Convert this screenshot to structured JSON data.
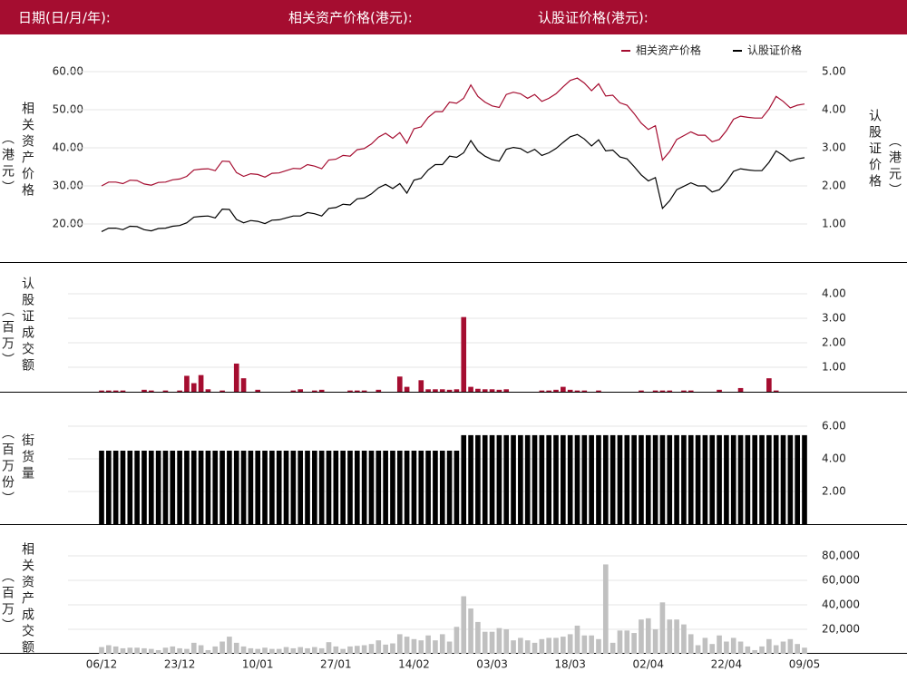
{
  "header": {
    "labels": [
      "日期(日/月/年):",
      "相关资产价格(港元):",
      "认股证价格(港元):"
    ]
  },
  "chart_data": [
    {
      "type": "line",
      "legend_position": "top-right",
      "grid": true,
      "y_label": "相关资产价格",
      "y_unit": "（港元）",
      "y2_label": "认股证价格",
      "y2_unit": "（港元）",
      "ylim": [
        15,
        60
      ],
      "yticks": [
        {
          "value": 20,
          "label": "20.00"
        },
        {
          "value": 30,
          "label": "30.00"
        },
        {
          "value": 40,
          "label": "40.00"
        },
        {
          "value": 50,
          "label": "50.00"
        },
        {
          "value": 60,
          "label": "60.00"
        }
      ],
      "y2lim": [
        0.5,
        5
      ],
      "y2ticks": [
        {
          "value": 1,
          "label": "1.00"
        },
        {
          "value": 2,
          "label": "2.00"
        },
        {
          "value": 3,
          "label": "3.00"
        },
        {
          "value": 4,
          "label": "4.00"
        },
        {
          "value": 5,
          "label": "5.00"
        }
      ],
      "series": [
        {
          "name": "相关资产价格",
          "color": "#a50d30",
          "values": [
            30,
            31,
            31,
            30.6,
            31.5,
            31.4,
            30.5,
            30.2,
            30.9,
            31,
            31.6,
            31.8,
            32.5,
            34.2,
            34.4,
            34.5,
            34,
            36.5,
            36.4,
            33.5,
            32.5,
            33.2,
            33,
            32.3,
            33.3,
            33.4,
            34,
            34.6,
            34.5,
            35.6,
            35.2,
            34.5,
            36.8,
            37,
            38,
            37.8,
            39.5,
            39.8,
            41,
            42.8,
            43.8,
            42.5,
            44,
            41.2,
            45,
            45.5,
            48,
            49.5,
            49.5,
            52,
            51.7,
            53,
            56.5,
            53.5,
            52,
            51,
            50.6,
            54,
            54.6,
            54.2,
            53,
            54,
            52.2,
            53,
            54.2,
            56,
            57.7,
            58.3,
            57,
            55,
            56.8,
            53.6,
            53.8,
            51.8,
            51.2,
            49,
            46.5,
            44.8,
            45.8,
            36.8,
            39,
            42.2,
            43.2,
            44.2,
            43.3,
            43.3,
            41.6,
            42.2,
            44.5,
            47.5,
            48.3,
            48,
            47.8,
            47.8,
            50.2,
            53.5,
            52.2,
            50.5,
            51.2,
            51.5
          ]
        },
        {
          "name": "认股证价格",
          "color": "#000000",
          "axis": "y2",
          "values": [
            0.8,
            0.89,
            0.89,
            0.85,
            0.94,
            0.93,
            0.85,
            0.82,
            0.88,
            0.89,
            0.94,
            0.96,
            1.03,
            1.18,
            1.2,
            1.21,
            1.16,
            1.39,
            1.38,
            1.12,
            1.03,
            1.09,
            1.07,
            1.01,
            1.1,
            1.11,
            1.16,
            1.21,
            1.21,
            1.3,
            1.27,
            1.21,
            1.41,
            1.43,
            1.52,
            1.5,
            1.66,
            1.68,
            1.79,
            1.95,
            2.04,
            1.93,
            2.06,
            1.81,
            2.15,
            2.2,
            2.42,
            2.56,
            2.56,
            2.78,
            2.75,
            2.87,
            3.19,
            2.92,
            2.78,
            2.69,
            2.65,
            2.96,
            3.01,
            2.98,
            2.87,
            2.96,
            2.8,
            2.87,
            2.98,
            3.14,
            3.29,
            3.35,
            3.23,
            3.05,
            3.21,
            2.92,
            2.94,
            2.76,
            2.71,
            2.51,
            2.29,
            2.13,
            2.22,
            1.41,
            1.61,
            1.9,
            1.99,
            2.08,
            2,
            2,
            1.84,
            1.9,
            2.11,
            2.38,
            2.45,
            2.42,
            2.4,
            2.4,
            2.62,
            2.92,
            2.8,
            2.65,
            2.71,
            2.74
          ]
        }
      ]
    },
    {
      "type": "bar",
      "grid": true,
      "color": "#a50d30",
      "y_label": "认股证成交额",
      "y_unit": "（百万）",
      "ylim": [
        0,
        4.5
      ],
      "yticks": [
        {
          "value": 1,
          "label": "1.00"
        },
        {
          "value": 2,
          "label": "2.00"
        },
        {
          "value": 3,
          "label": "3.00"
        },
        {
          "value": 4,
          "label": "4.00"
        }
      ],
      "values": [
        0.05,
        0.05,
        0.05,
        0.05,
        0,
        0,
        0.08,
        0.05,
        0,
        0.05,
        0,
        0.05,
        0.65,
        0.35,
        0.68,
        0.1,
        0,
        0.05,
        0,
        1.15,
        0.55,
        0,
        0.08,
        0,
        0,
        0,
        0,
        0.05,
        0.1,
        0,
        0.05,
        0.08,
        0,
        0,
        0,
        0.05,
        0.05,
        0.05,
        0,
        0.08,
        0,
        0,
        0.62,
        0.2,
        0,
        0.47,
        0.1,
        0.1,
        0.1,
        0.08,
        0.1,
        3.05,
        0.2,
        0.12,
        0.1,
        0.1,
        0.08,
        0.1,
        0,
        0,
        0,
        0,
        0.05,
        0.05,
        0.08,
        0.2,
        0.08,
        0.05,
        0.05,
        0,
        0.05,
        0,
        0,
        0,
        0,
        0,
        0.05,
        0,
        0.05,
        0.05,
        0.05,
        0,
        0.05,
        0.05,
        0,
        0,
        0,
        0.08,
        0,
        0,
        0.15,
        0,
        0,
        0,
        0.55,
        0.05,
        0,
        0,
        0,
        0
      ]
    },
    {
      "type": "bar",
      "grid": true,
      "color": "#000000",
      "y_label": "街货量",
      "y_unit": "（百万份）",
      "ylim": [
        0,
        6.5
      ],
      "yticks": [
        {
          "value": 2,
          "label": "2.00"
        },
        {
          "value": 4,
          "label": "4.00"
        },
        {
          "value": 6,
          "label": "6.00"
        }
      ],
      "values": [
        4.5,
        4.5,
        4.5,
        4.5,
        4.5,
        4.5,
        4.5,
        4.5,
        4.5,
        4.5,
        4.5,
        4.5,
        4.5,
        4.5,
        4.5,
        4.5,
        4.5,
        4.5,
        4.5,
        4.5,
        4.5,
        4.5,
        4.5,
        4.5,
        4.5,
        4.5,
        4.5,
        4.5,
        4.5,
        4.5,
        4.5,
        4.5,
        4.5,
        4.5,
        4.5,
        4.5,
        4.5,
        4.5,
        4.5,
        4.5,
        4.5,
        4.5,
        4.5,
        4.5,
        4.5,
        4.5,
        4.5,
        4.5,
        4.5,
        4.5,
        4.5,
        5.45,
        5.45,
        5.45,
        5.45,
        5.45,
        5.45,
        5.45,
        5.45,
        5.45,
        5.45,
        5.45,
        5.45,
        5.45,
        5.45,
        5.45,
        5.45,
        5.45,
        5.45,
        5.45,
        5.45,
        5.45,
        5.45,
        5.45,
        5.45,
        5.45,
        5.45,
        5.45,
        5.45,
        5.45,
        5.45,
        5.45,
        5.45,
        5.45,
        5.45,
        5.45,
        5.45,
        5.45,
        5.45,
        5.45,
        5.45,
        5.45,
        5.45,
        5.45,
        5.45,
        5.45,
        5.45,
        5.45,
        5.45,
        5.45
      ]
    },
    {
      "type": "bar",
      "grid": true,
      "color": "#c0c0c0",
      "y_label": "相关资产成交额",
      "y_unit": "（百万）",
      "ylim": [
        0,
        90000
      ],
      "yticks": [
        {
          "value": 20000,
          "label": "20,000"
        },
        {
          "value": 40000,
          "label": "40,000"
        },
        {
          "value": 60000,
          "label": "60,000"
        },
        {
          "value": 80000,
          "label": "80,000"
        }
      ],
      "categories": [
        "06/12",
        null,
        null,
        null,
        null,
        null,
        null,
        null,
        null,
        null,
        null,
        "23/12",
        null,
        null,
        null,
        null,
        null,
        null,
        null,
        null,
        null,
        null,
        "10/01",
        null,
        null,
        null,
        null,
        null,
        null,
        null,
        null,
        null,
        null,
        "27/01",
        null,
        null,
        null,
        null,
        null,
        null,
        null,
        null,
        null,
        null,
        "14/02",
        null,
        null,
        null,
        null,
        null,
        null,
        null,
        null,
        null,
        null,
        "03/03",
        null,
        null,
        null,
        null,
        null,
        null,
        null,
        null,
        null,
        null,
        "18/03",
        null,
        null,
        null,
        null,
        null,
        null,
        null,
        null,
        null,
        null,
        "02/04",
        null,
        null,
        null,
        null,
        null,
        null,
        null,
        null,
        null,
        null,
        "22/04",
        null,
        null,
        null,
        null,
        null,
        null,
        null,
        null,
        null,
        null,
        "09/05"
      ],
      "values": [
        5500,
        7000,
        6000,
        4500,
        5000,
        5000,
        4500,
        4000,
        3000,
        5000,
        6000,
        4500,
        4000,
        9000,
        7000,
        3000,
        6000,
        10000,
        14000,
        9000,
        6000,
        4500,
        4000,
        5000,
        4000,
        4000,
        5500,
        4500,
        5500,
        4500,
        5500,
        4500,
        9500,
        6000,
        4000,
        6000,
        6500,
        7000,
        8000,
        11000,
        7500,
        8500,
        16000,
        14000,
        12000,
        11000,
        15000,
        11000,
        16000,
        10000,
        22000,
        47000,
        37000,
        26000,
        18000,
        18000,
        21000,
        20000,
        11000,
        13000,
        11000,
        9000,
        12000,
        13000,
        13000,
        14000,
        16000,
        23000,
        15000,
        15000,
        12000,
        73000,
        9000,
        19000,
        19000,
        17000,
        28000,
        29000,
        20000,
        42000,
        28000,
        28000,
        24000,
        16000,
        7000,
        13000,
        8000,
        15000,
        10000,
        13000,
        10000,
        6000,
        3000,
        6000,
        12000,
        7000,
        10000,
        12000,
        8000,
        5000
      ]
    }
  ]
}
